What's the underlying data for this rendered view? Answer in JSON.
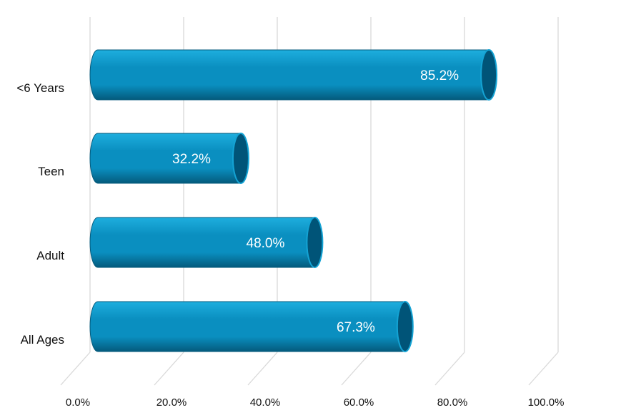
{
  "chart_data": {
    "type": "bar",
    "orientation": "horizontal",
    "style": "3d-cylinder",
    "categories": [
      "<6 Years",
      "Teen",
      "Adult",
      "All Ages"
    ],
    "values": [
      85.2,
      32.2,
      48.0,
      67.3
    ],
    "data_labels": [
      "85.2%",
      "32.2%",
      "48.0%",
      "67.3%"
    ],
    "x_ticks": [
      "0.0%",
      "20.0%",
      "40.0%",
      "60.0%",
      "80.0%",
      "100.0%"
    ],
    "xlim": [
      0,
      100
    ],
    "title": "",
    "xlabel": "",
    "ylabel": "",
    "legend": "none",
    "grid": true,
    "colors": {
      "bar_body": "#0a8fc0",
      "bar_highlight": "#1eaede",
      "bar_shadow": "#045a7c",
      "bar_cap": "#005478",
      "bar_cap_edge": "#14a3d4",
      "gridline": "#d9d9d9"
    }
  }
}
